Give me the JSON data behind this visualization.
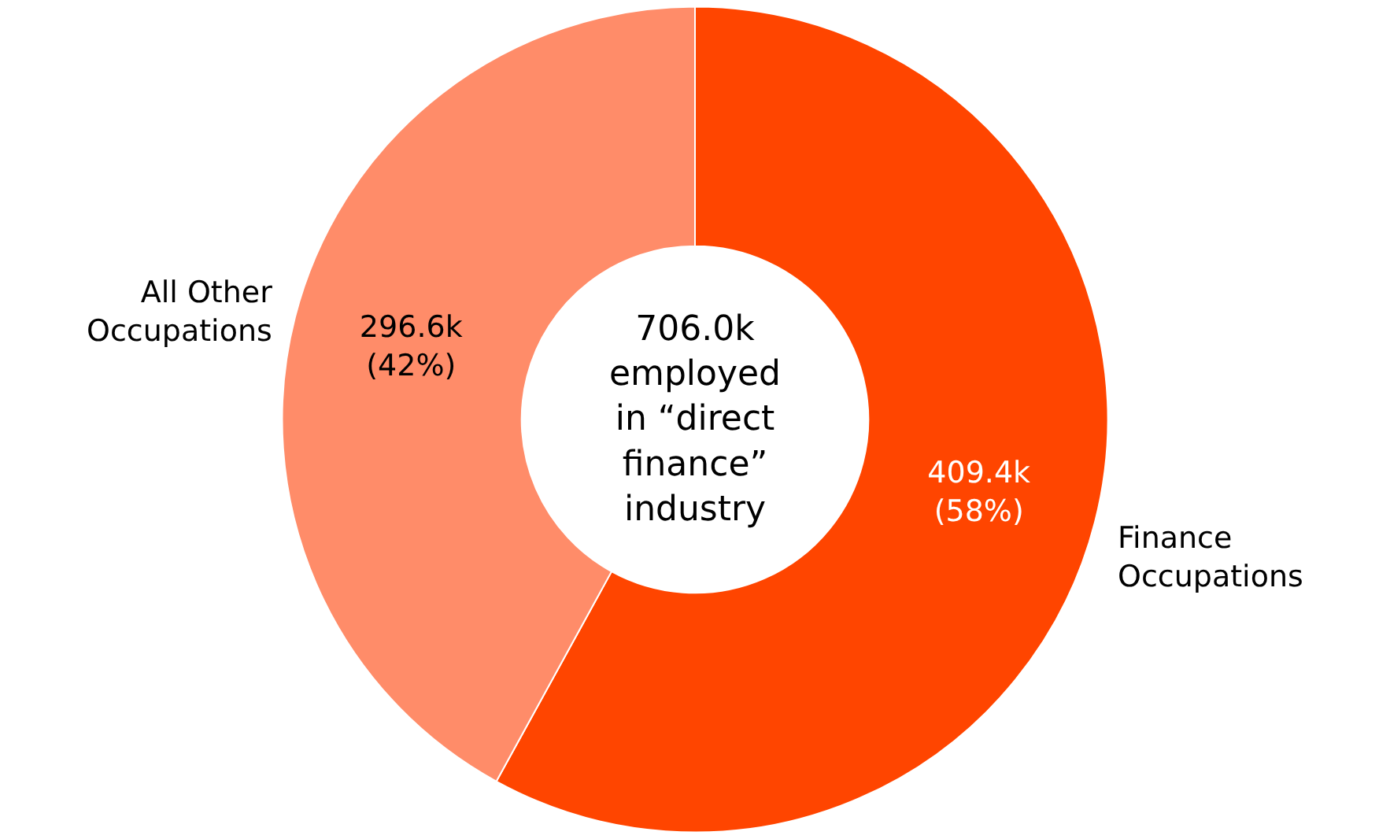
{
  "chart_data": {
    "type": "donut",
    "categories": [
      "Finance\nOccupations",
      "All Other\nOccupations"
    ],
    "values": [
      409400,
      296600
    ],
    "colors": [
      "#ff4500",
      "#ff8c69"
    ],
    "value_labels": [
      "409.4k\n(58%)",
      "296.6k\n(42%)"
    ],
    "annotations": [
      "706.0k\nemployed\nin “direct\nfinance”\nindustry"
    ]
  }
}
